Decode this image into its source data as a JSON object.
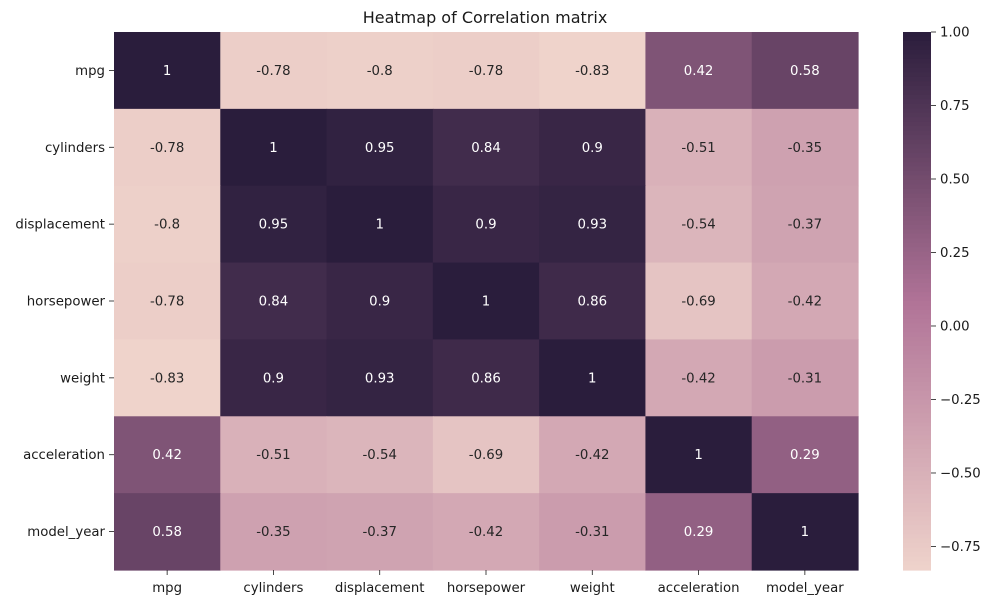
{
  "chart_data": {
    "type": "heatmap",
    "title": "Heatmap of Correlation matrix",
    "rows": [
      "mpg",
      "cylinders",
      "displacement",
      "horsepower",
      "weight",
      "acceleration",
      "model_year"
    ],
    "columns": [
      "mpg",
      "cylinders",
      "displacement",
      "horsepower",
      "weight",
      "acceleration",
      "model_year"
    ],
    "values": [
      [
        1,
        -0.78,
        -0.8,
        -0.78,
        -0.83,
        0.42,
        0.58
      ],
      [
        -0.78,
        1,
        0.95,
        0.84,
        0.9,
        -0.51,
        -0.35
      ],
      [
        -0.8,
        0.95,
        1,
        0.9,
        0.93,
        -0.54,
        -0.37
      ],
      [
        -0.78,
        0.84,
        0.9,
        1,
        0.86,
        -0.69,
        -0.42
      ],
      [
        -0.83,
        0.9,
        0.93,
        0.86,
        1,
        -0.42,
        -0.31
      ],
      [
        0.42,
        -0.51,
        -0.54,
        -0.69,
        -0.42,
        1,
        0.29
      ],
      [
        0.58,
        -0.35,
        -0.37,
        -0.42,
        -0.31,
        0.29,
        1
      ]
    ],
    "annotations": [
      [
        "1",
        "-0.78",
        "-0.8",
        "-0.78",
        "-0.83",
        "0.42",
        "0.58"
      ],
      [
        "-0.78",
        "1",
        "0.95",
        "0.84",
        "0.9",
        "-0.51",
        "-0.35"
      ],
      [
        "-0.8",
        "0.95",
        "1",
        "0.9",
        "0.93",
        "-0.54",
        "-0.37"
      ],
      [
        "-0.78",
        "0.84",
        "0.9",
        "1",
        "0.86",
        "-0.69",
        "-0.42"
      ],
      [
        "-0.83",
        "0.9",
        "0.93",
        "0.86",
        "1",
        "-0.42",
        "-0.31"
      ],
      [
        "0.42",
        "-0.51",
        "-0.54",
        "-0.69",
        "-0.42",
        "1",
        "0.29"
      ],
      [
        "0.58",
        "-0.35",
        "-0.37",
        "-0.42",
        "-0.31",
        "0.29",
        "1"
      ]
    ],
    "colorbar": {
      "vmin": -0.83,
      "vmax": 1.0,
      "ticks": [
        1.0,
        0.75,
        0.5,
        0.25,
        0.0,
        -0.25,
        -0.5,
        -0.75
      ],
      "tick_labels": [
        "1.00",
        "0.75",
        "0.50",
        "0.25",
        "0.00",
        "−0.25",
        "−0.50",
        "−0.75"
      ]
    },
    "colormap": {
      "low_color": "#efd3cb",
      "mid_color": "#b07397",
      "high_color": "#2a1d3c"
    }
  }
}
